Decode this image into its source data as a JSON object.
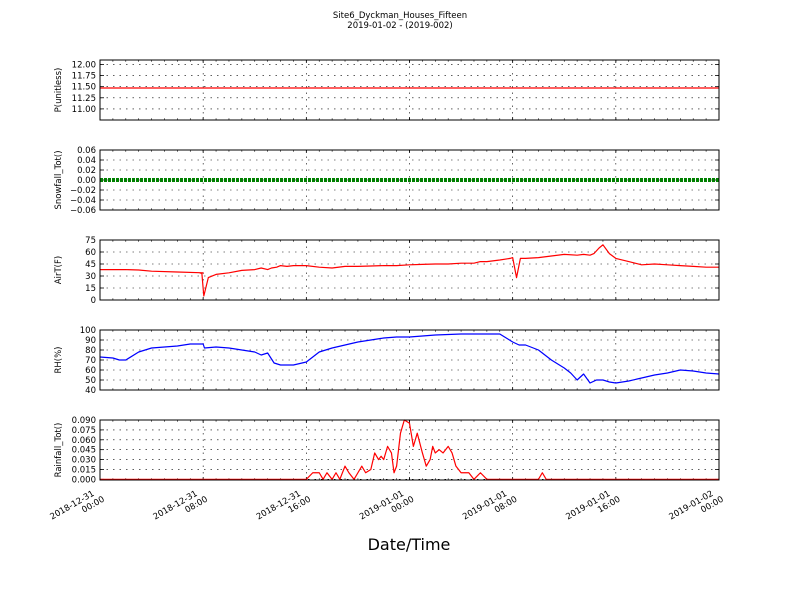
{
  "title_line1": "Site6_Dyckman_Houses_Fifteen",
  "title_line2": "2019-01-02 - (2019-002)",
  "xlabel": "Date/Time",
  "x_ticks": [
    {
      "hours": 0,
      "line1": "2018-12-31",
      "line2": "00:00"
    },
    {
      "hours": 8,
      "line1": "2018-12-31",
      "line2": "08:00"
    },
    {
      "hours": 16,
      "line1": "2018-12-31",
      "line2": "16:00"
    },
    {
      "hours": 24,
      "line1": "2019-01-01",
      "line2": "00:00"
    },
    {
      "hours": 32,
      "line1": "2019-01-01",
      "line2": "08:00"
    },
    {
      "hours": 40,
      "line1": "2019-01-01",
      "line2": "16:00"
    },
    {
      "hours": 48,
      "line1": "2019-01-02",
      "line2": "00:00"
    }
  ],
  "chart_data": [
    {
      "type": "line",
      "ylabel": "P(unitless)",
      "color": "#ff0000",
      "ylim": [
        10.75,
        12.1
      ],
      "yticks": [
        "12.00",
        "11.75",
        "11.50",
        "11.25",
        "11.00"
      ],
      "ytick_values": [
        12.0,
        11.75,
        11.5,
        11.25,
        11.0
      ],
      "x": [
        0,
        48
      ],
      "y": [
        11.47,
        11.47
      ]
    },
    {
      "type": "line",
      "ylabel": "Snowfall_Tot()",
      "color": "#008000",
      "marker": "dot",
      "ylim": [
        -0.06,
        0.06
      ],
      "yticks": [
        "0.06",
        "0.04",
        "0.02",
        "0.00",
        "−0.02",
        "−0.04",
        "−0.06"
      ],
      "ytick_values": [
        0.06,
        0.04,
        0.02,
        0.0,
        -0.02,
        -0.04,
        -0.06
      ],
      "x": [
        0,
        48
      ],
      "y": [
        0,
        0
      ]
    },
    {
      "type": "line",
      "ylabel": "AirT(F)",
      "color": "#ff0000",
      "ylim": [
        0,
        75
      ],
      "yticks": [
        "75",
        "60",
        "45",
        "30",
        "15",
        "0"
      ],
      "ytick_values": [
        75,
        60,
        45,
        30,
        15,
        0
      ],
      "x": [
        0,
        2,
        3,
        4,
        6,
        8,
        7.7,
        7.9,
        8.05,
        8.4,
        9,
        10,
        11,
        12,
        12.5,
        13,
        13.3,
        13.7,
        14,
        14.5,
        15,
        15.3,
        16,
        17,
        18,
        19,
        20,
        21,
        22,
        23,
        24,
        25,
        26,
        27,
        28,
        29,
        29.5,
        30,
        31,
        31.8,
        32,
        32.3,
        32.6,
        33,
        34,
        35,
        36,
        37,
        37.5,
        38,
        38.3,
        38.7,
        39,
        39.5,
        40,
        41,
        41.5,
        42,
        43,
        44,
        45,
        46,
        47,
        48
      ],
      "y": [
        38,
        38,
        37.5,
        36,
        35,
        34,
        34,
        33,
        5,
        28,
        32,
        34,
        37,
        38,
        40,
        38,
        40,
        41,
        43,
        42,
        43,
        43,
        43,
        41,
        40,
        42,
        42,
        42.5,
        43,
        43,
        44,
        44.5,
        45,
        45,
        46,
        46,
        48,
        48,
        50,
        52,
        53,
        28,
        52,
        52,
        53,
        55,
        57,
        56,
        57,
        56,
        58,
        65,
        69,
        58,
        52,
        48,
        46,
        44,
        45,
        44,
        43,
        42,
        41,
        41
      ]
    },
    {
      "type": "line",
      "ylabel": "RH(%)",
      "color": "#0000ff",
      "ylim": [
        40,
        100
      ],
      "yticks": [
        "100",
        "90",
        "80",
        "70",
        "60",
        "50",
        "40"
      ],
      "ytick_values": [
        100,
        90,
        80,
        70,
        60,
        50,
        40
      ],
      "x": [
        0,
        1,
        1.5,
        2,
        3,
        4,
        5,
        6,
        7,
        8,
        8.1,
        9,
        10,
        11,
        12,
        12.5,
        13,
        13.5,
        14,
        15,
        16,
        17,
        18,
        19,
        20,
        21,
        22,
        23,
        24,
        25,
        26,
        27,
        28,
        29,
        30,
        31,
        32,
        32.5,
        33,
        34,
        35,
        36,
        36.5,
        37,
        37.5,
        38,
        38.5,
        39,
        39.5,
        40,
        41,
        42,
        43,
        44,
        45,
        46,
        47,
        48
      ],
      "y": [
        73,
        72,
        70,
        70,
        78,
        82,
        83,
        84,
        86,
        86,
        82,
        83,
        82,
        80,
        78,
        75,
        77,
        67,
        65,
        65,
        68,
        78,
        82,
        85,
        88,
        90,
        92,
        93,
        93,
        94,
        95,
        95.5,
        96,
        96,
        96,
        96,
        88,
        85,
        85,
        80,
        70,
        62,
        57,
        50,
        56,
        47,
        50,
        50,
        48,
        47,
        49,
        52,
        55,
        57,
        60,
        59,
        57,
        56
      ]
    },
    {
      "type": "line",
      "ylabel": "Rainfall_Tot()",
      "color": "#ff0000",
      "ylim": [
        -0.001,
        0.09
      ],
      "yticks": [
        "0.090",
        "0.075",
        "0.060",
        "0.045",
        "0.030",
        "0.015",
        "0.000"
      ],
      "ytick_values": [
        0.09,
        0.075,
        0.06,
        0.045,
        0.03,
        0.015,
        0.0
      ],
      "x": [
        0,
        16,
        16.5,
        17,
        17.3,
        17.6,
        18,
        18.3,
        18.6,
        19,
        19.3,
        19.7,
        20,
        20.3,
        20.6,
        21,
        21.3,
        21.6,
        21.8,
        22,
        22.3,
        22.6,
        22.8,
        23,
        23.3,
        23.6,
        24,
        24.3,
        24.6,
        25,
        25.3,
        25.6,
        25.8,
        26,
        26.3,
        26.6,
        27,
        27.3,
        27.6,
        28,
        28.3,
        28.6,
        29,
        29.5,
        30,
        31,
        32,
        33,
        33.8,
        34,
        34.3,
        34.6,
        35,
        40,
        48
      ],
      "y": [
        0,
        0,
        0.01,
        0.01,
        0,
        0.01,
        0,
        0.01,
        0,
        0.02,
        0.01,
        0,
        0.01,
        0.02,
        0.01,
        0.015,
        0.04,
        0.03,
        0.035,
        0.03,
        0.05,
        0.04,
        0.01,
        0.02,
        0.07,
        0.09,
        0.085,
        0.05,
        0.07,
        0.04,
        0.02,
        0.03,
        0.05,
        0.04,
        0.045,
        0.04,
        0.05,
        0.04,
        0.02,
        0.01,
        0.01,
        0.01,
        0,
        0.01,
        0,
        0,
        0,
        0,
        0,
        0,
        0.01,
        0,
        0,
        0,
        0
      ]
    }
  ]
}
